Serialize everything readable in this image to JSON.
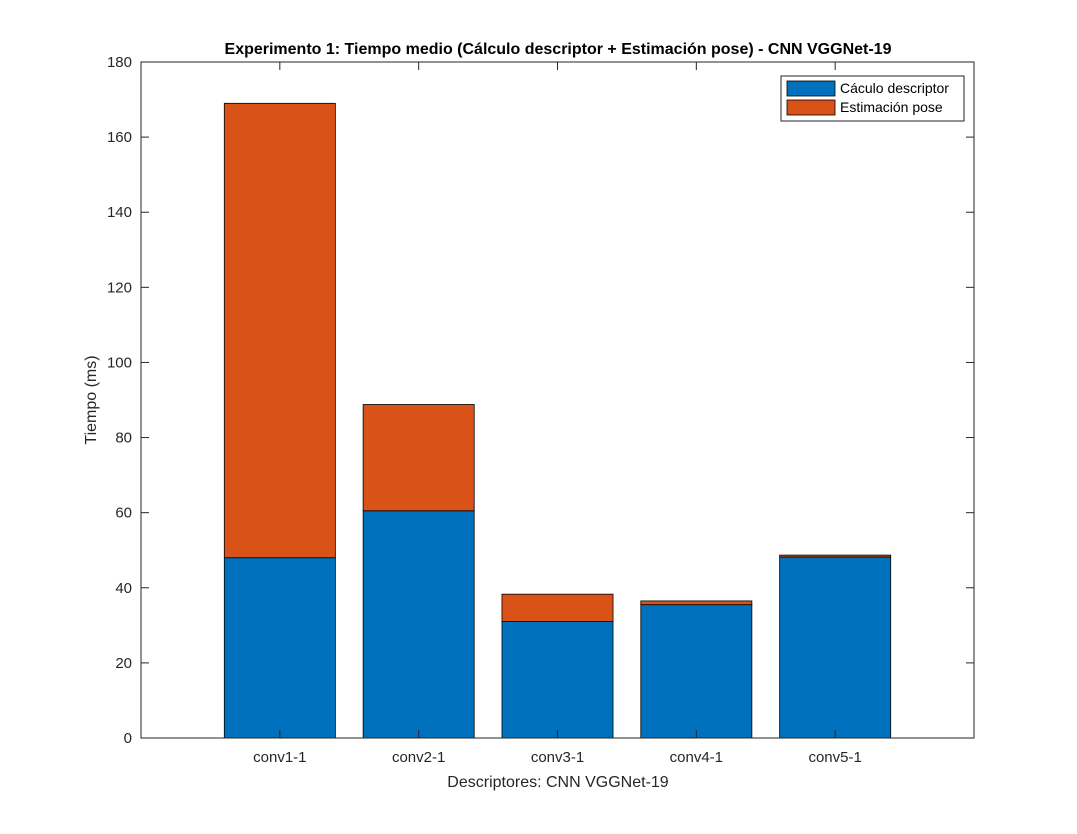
{
  "chart_data": {
    "type": "bar",
    "stacked": true,
    "title": "Experimento 1: Tiempo medio (Cálculo descriptor + Estimación pose) - CNN VGGNet-19",
    "xlabel": "Descriptores: CNN VGGNet-19",
    "ylabel": "Tiempo (ms)",
    "categories": [
      "conv1-1",
      "conv2-1",
      "conv3-1",
      "conv4-1",
      "conv5-1"
    ],
    "series": [
      {
        "name": "Cáculo descriptor",
        "color": "#0072BD",
        "values": [
          48.0,
          60.5,
          31.0,
          35.5,
          48.2
        ]
      },
      {
        "name": "Estimación pose",
        "color": "#D95319",
        "values": [
          121.0,
          28.3,
          7.3,
          1.0,
          0.5
        ]
      }
    ],
    "ylim": [
      0,
      180
    ],
    "yticks": [
      0,
      20,
      40,
      60,
      80,
      100,
      120,
      140,
      160,
      180
    ],
    "xlim": [
      0,
      6
    ],
    "grid": false,
    "legend_position": "top-right"
  }
}
